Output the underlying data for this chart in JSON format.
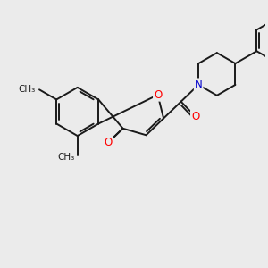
{
  "bg_color": "#ebebeb",
  "bond_color": "#1a1a1a",
  "bond_width": 1.4,
  "dbo": 0.045,
  "atom_colors": {
    "O": "#ff0000",
    "N": "#0000cc"
  },
  "font_size_atom": 8.5,
  "font_size_methyl": 7.5
}
